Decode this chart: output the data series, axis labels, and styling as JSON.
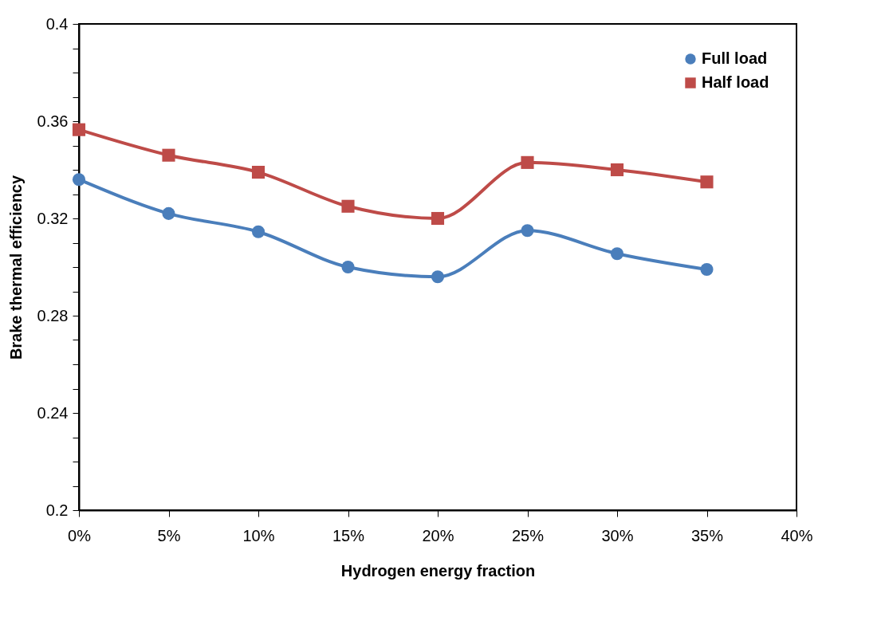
{
  "chart_data": {
    "type": "line",
    "xlabel": "Hydrogen energy fraction",
    "ylabel": "Brake thermal efficiency",
    "x": [
      0,
      5,
      10,
      15,
      20,
      25,
      30,
      35
    ],
    "series": [
      {
        "name": "Full load",
        "color": "#4a7ebb",
        "marker": "circle",
        "values": [
          0.336,
          0.322,
          0.3145,
          0.3,
          0.296,
          0.315,
          0.3055,
          0.299
        ]
      },
      {
        "name": "Half load",
        "color": "#be4b48",
        "marker": "square",
        "values": [
          0.3565,
          0.346,
          0.339,
          0.325,
          0.32,
          0.343,
          0.34,
          0.335
        ]
      }
    ],
    "xlim": [
      0,
      40
    ],
    "xticks": [
      {
        "value": 0,
        "label": "0%"
      },
      {
        "value": 5,
        "label": "5%"
      },
      {
        "value": 10,
        "label": "10%"
      },
      {
        "value": 15,
        "label": "15%"
      },
      {
        "value": 20,
        "label": "20%"
      },
      {
        "value": 25,
        "label": "25%"
      },
      {
        "value": 30,
        "label": "30%"
      },
      {
        "value": 35,
        "label": "35%"
      },
      {
        "value": 40,
        "label": "40%"
      }
    ],
    "ylim": [
      0.2,
      0.4
    ],
    "yticks": [
      0.2,
      {
        "value": 0.21,
        "label": null
      },
      {
        "value": 0.22,
        "label": null
      },
      {
        "value": 0.23,
        "label": null
      },
      0.24,
      {
        "value": 0.25,
        "label": null
      },
      {
        "value": 0.26,
        "label": null
      },
      {
        "value": 0.27,
        "label": null
      },
      0.28,
      {
        "value": 0.29,
        "label": null
      },
      {
        "value": 0.3,
        "label": null
      },
      {
        "value": 0.31,
        "label": null
      },
      0.32,
      {
        "value": 0.33,
        "label": null
      },
      {
        "value": 0.34,
        "label": null
      },
      {
        "value": 0.35,
        "label": null
      },
      0.36,
      {
        "value": 0.37,
        "label": null
      },
      {
        "value": 0.38,
        "label": null
      },
      {
        "value": 0.39,
        "label": null
      },
      0.4
    ],
    "grid": false,
    "legend": "top right",
    "line_style": "solid"
  }
}
